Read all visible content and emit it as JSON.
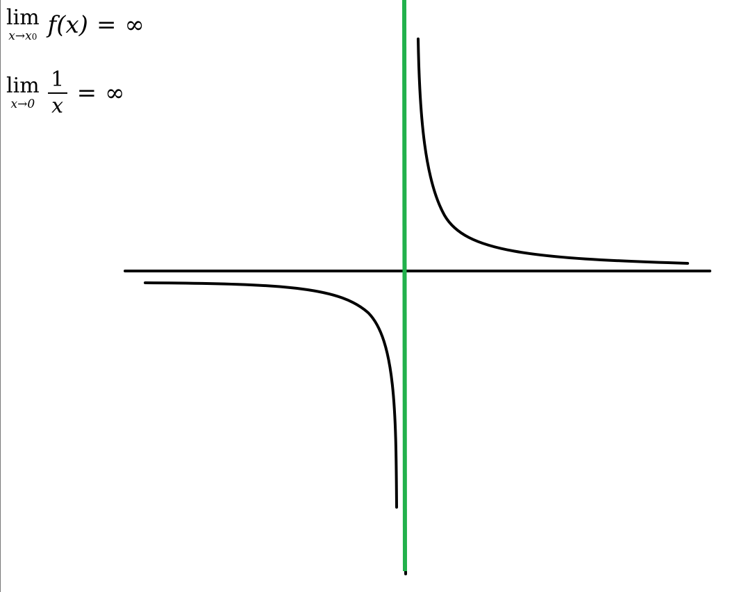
{
  "formulas": {
    "general": {
      "lim_word": "lim",
      "lim_sub": "x→x",
      "lim_sub_index": "0",
      "expression": "f(x)",
      "equals": "=",
      "result": "∞"
    },
    "example": {
      "lim_word": "lim",
      "lim_sub": "x→0",
      "numerator": "1",
      "denominator": "x",
      "equals": "=",
      "result": "∞"
    }
  },
  "colors": {
    "asymptote": "#22b14c",
    "axis": "#000000",
    "curve": "#000000",
    "background": "#ffffff"
  }
}
